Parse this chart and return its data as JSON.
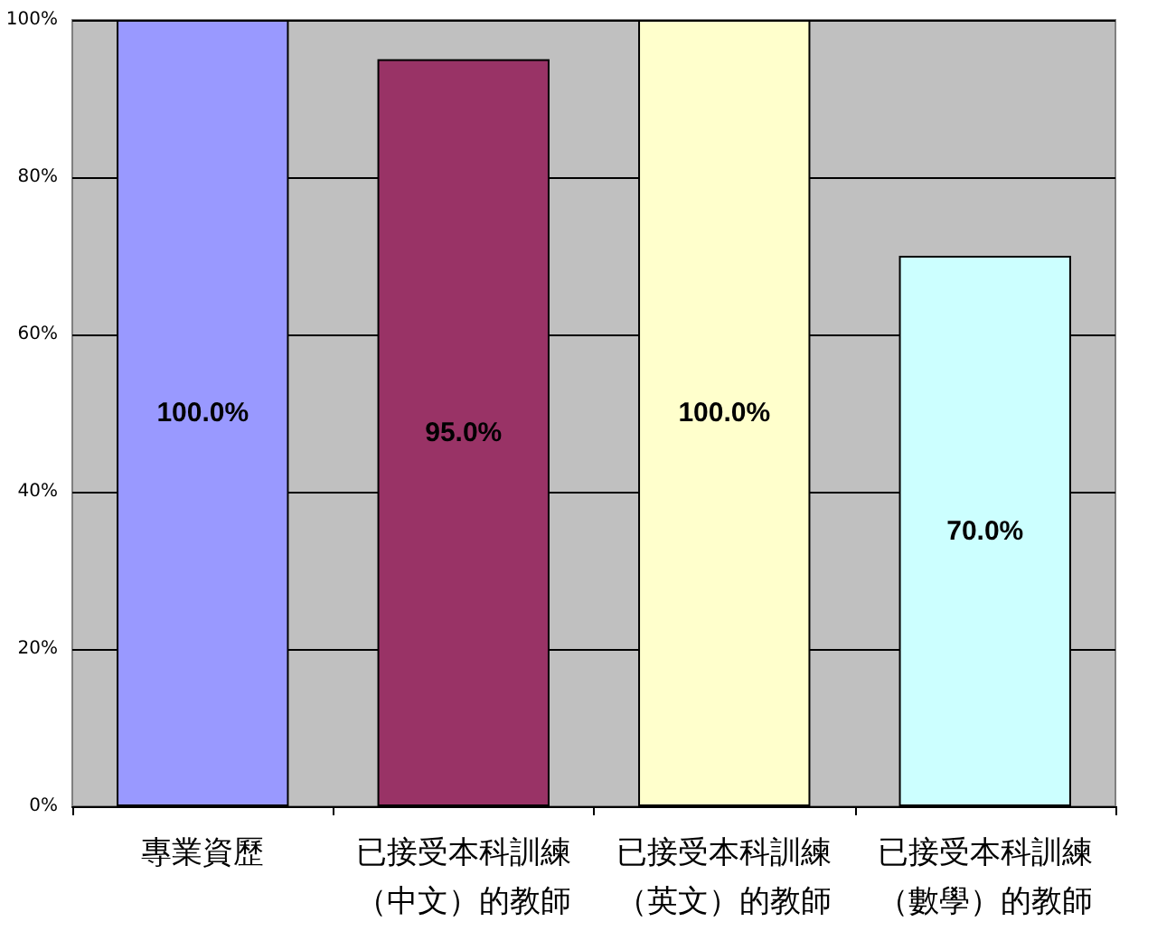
{
  "chart_data": {
    "type": "bar",
    "categories": [
      "專業資歷",
      "已接受本科訓練（中文）的教師",
      "已接受本科訓練（英文）的教師",
      "已接受本科訓練（數學）的教師"
    ],
    "values": [
      100,
      95,
      100,
      70
    ],
    "colors": [
      "#9999ff",
      "#993366",
      "#ffffcc",
      "#ccffff"
    ],
    "value_labels": [
      "100.0%",
      "95.0%",
      "100.0%",
      "70.0%"
    ],
    "ylim": [
      0,
      100
    ],
    "yticks": [
      {
        "value": 0,
        "label": "0%"
      },
      {
        "value": 20,
        "label": "20%"
      },
      {
        "value": 40,
        "label": "40%"
      },
      {
        "value": 60,
        "label": "60%"
      },
      {
        "value": 80,
        "label": "80%"
      },
      {
        "value": 100,
        "label": "100%"
      }
    ],
    "grid": "y"
  }
}
